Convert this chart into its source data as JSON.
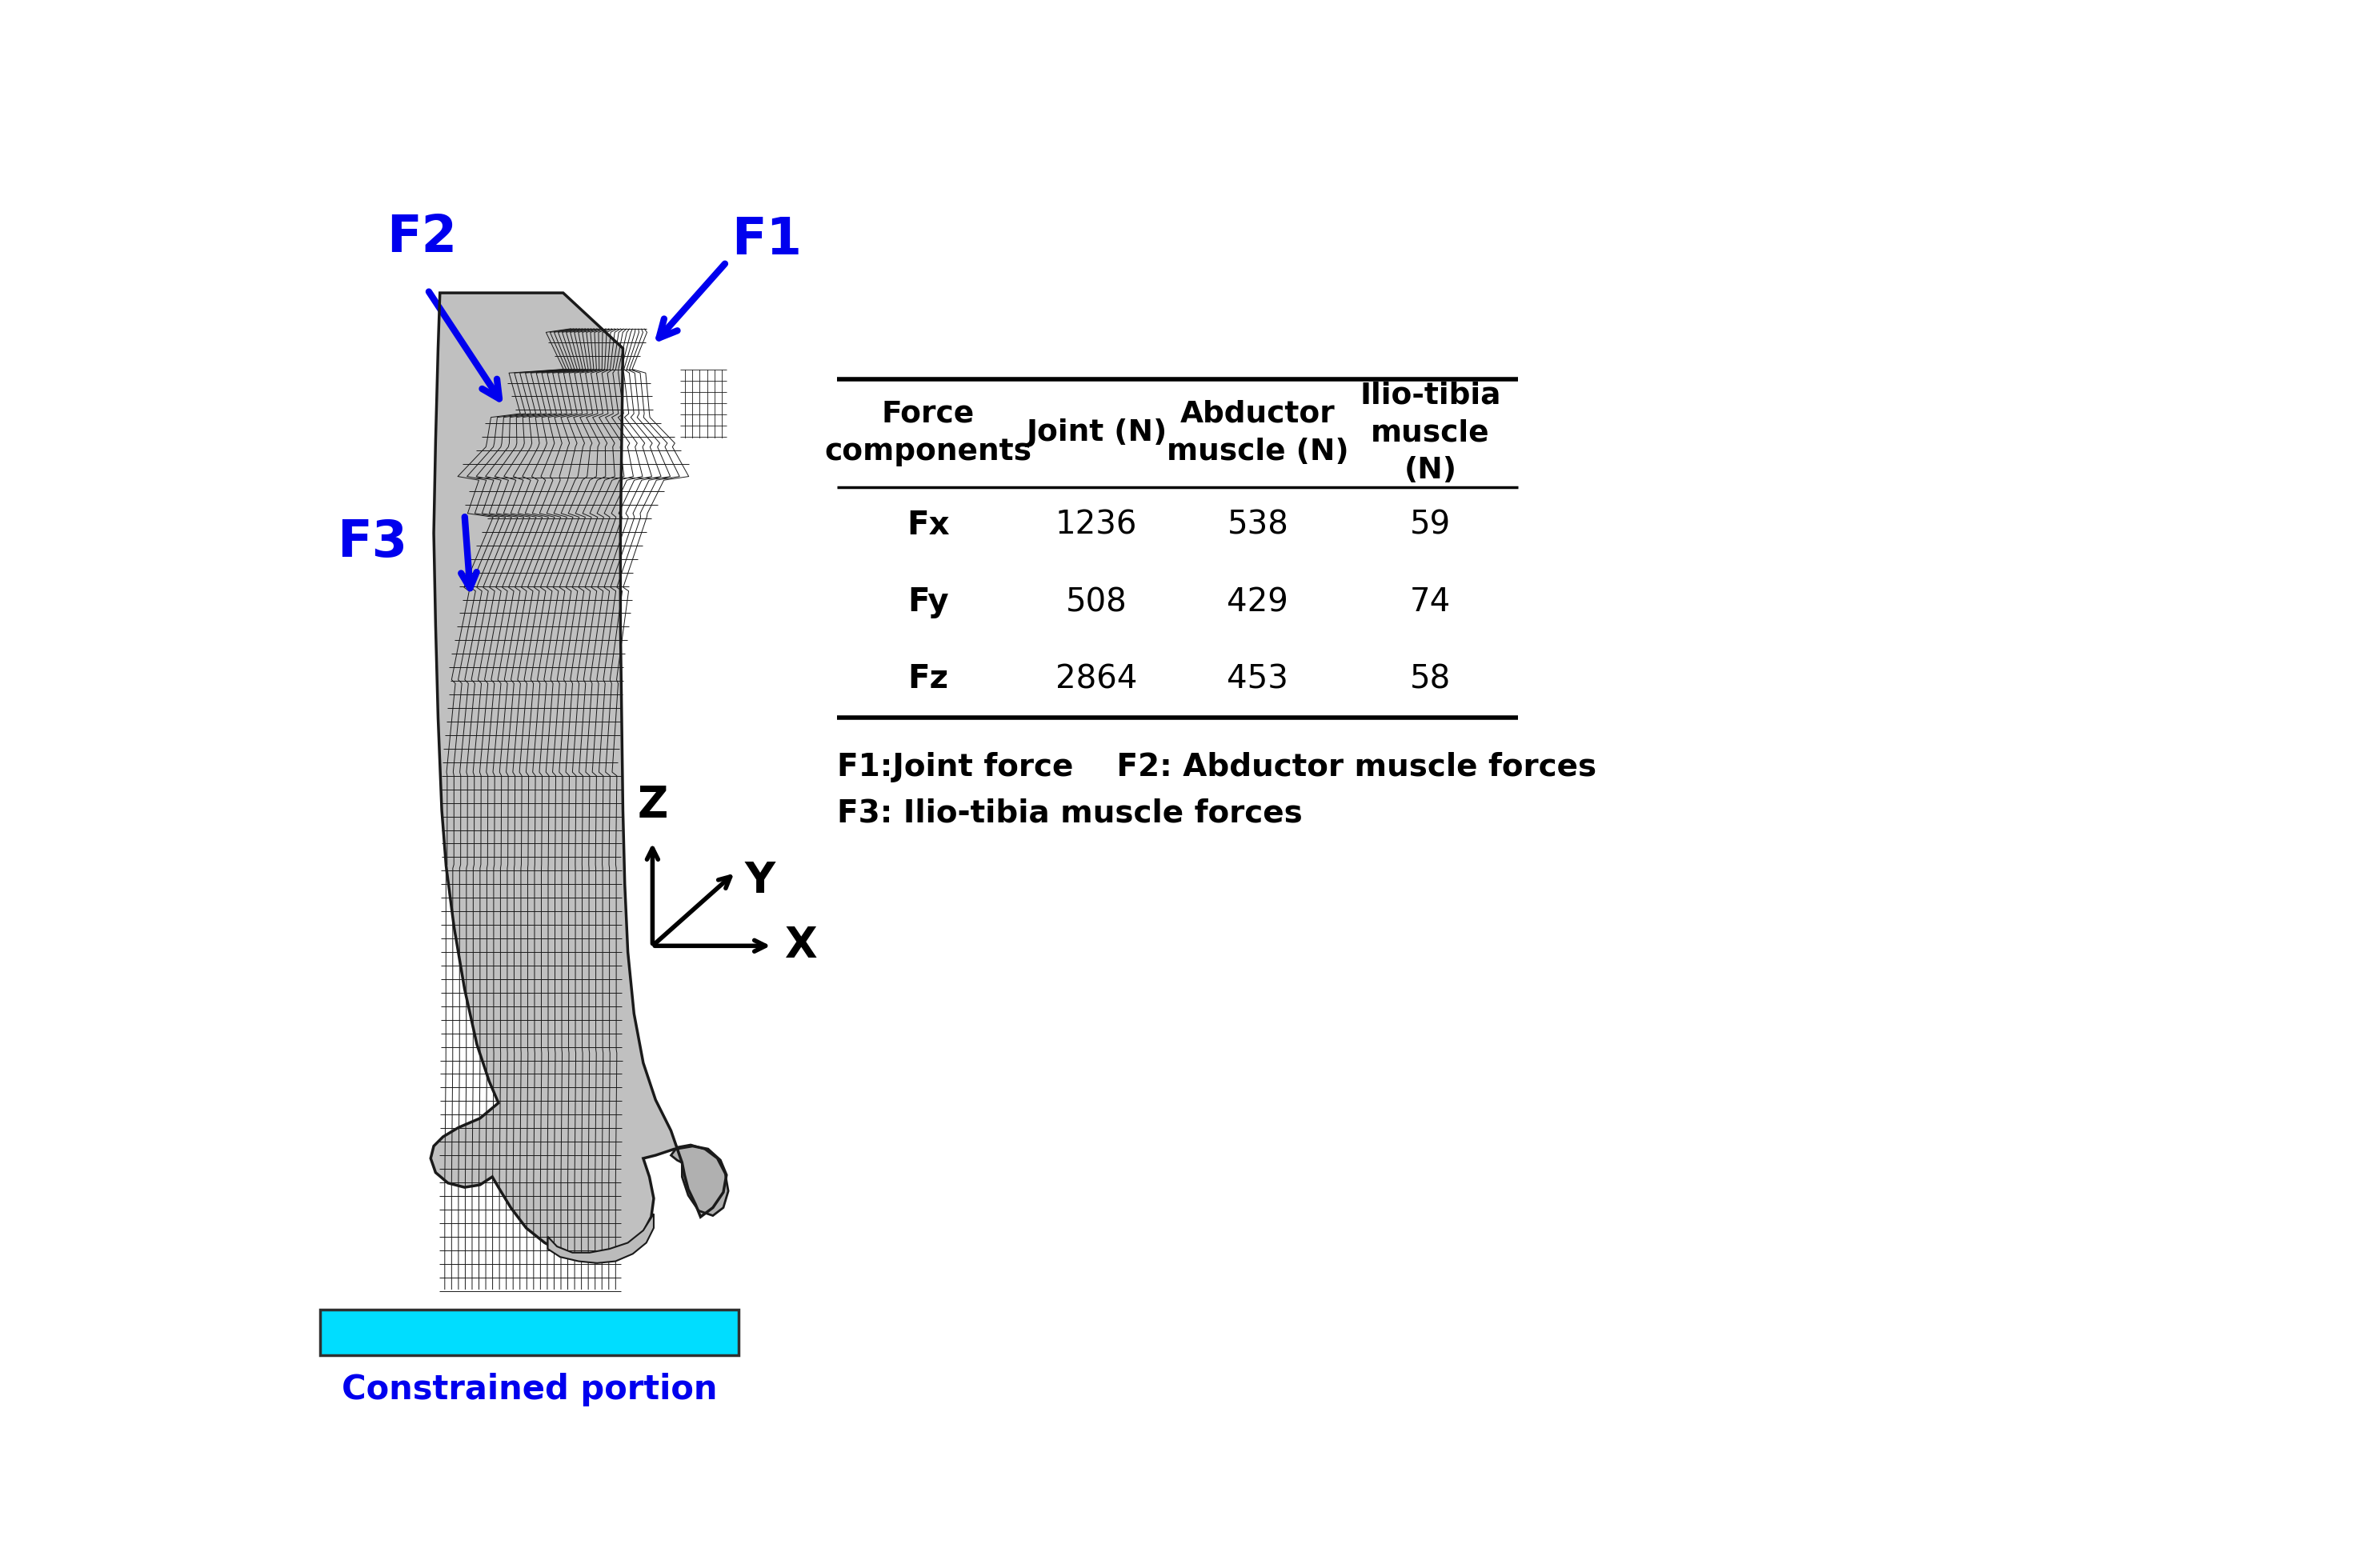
{
  "table_headers": [
    "Force\ncomponents",
    "Joint (N)",
    "Abductor\nmuscle (N)",
    "Ilio-tibia\nmuscle\n(N)"
  ],
  "table_rows": [
    [
      "Fx",
      "1236",
      "538",
      "59"
    ],
    [
      "Fy",
      "508",
      "429",
      "74"
    ],
    [
      "Fz",
      "2864",
      "453",
      "58"
    ]
  ],
  "legend_line1": "F1:Joint force    F2: Abductor muscle forces",
  "legend_line2": "F3: Ilio-tibia muscle forces",
  "blue_color": "#0000EE",
  "cyan_color": "#00DDFF",
  "dark_cyan": "#009999",
  "constrained_label": "Constrained portion",
  "bg_color": "#FFFFFF",
  "label_F1": "F1",
  "label_F2": "F2",
  "label_F3": "F3",
  "Z_label": "Z",
  "Y_label": "Y",
  "X_label": "X",
  "mesh_dark": "#1A1A1A",
  "mesh_light": "#888888",
  "stem_fill": "#AAAAAA",
  "stem_fill2": "#C0C0C0",
  "stem_dark": "#606060"
}
